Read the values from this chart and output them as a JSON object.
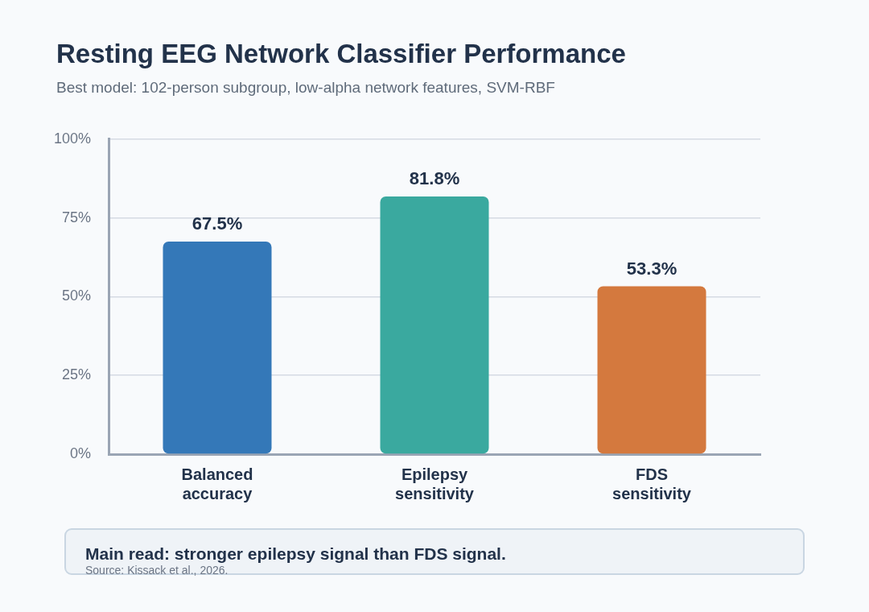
{
  "chart_data": {
    "type": "bar",
    "title": "Resting EEG Network Classifier Performance",
    "subtitle": "Best model: 102-person subgroup, low-alpha network features, SVM-RBF",
    "categories": [
      "Balanced accuracy",
      "Epilepsy sensitivity",
      "FDS sensitivity"
    ],
    "values": [
      67.5,
      81.8,
      53.3
    ],
    "colors": [
      "#3478b8",
      "#3aa99f",
      "#d4793e"
    ],
    "value_labels": [
      "67.5%",
      "81.8%",
      "53.3%"
    ],
    "ylim": [
      0,
      100
    ],
    "yticks": [
      {
        "value": 0,
        "label": "0%"
      },
      {
        "value": 25,
        "label": "25%"
      },
      {
        "value": 50,
        "label": "50%"
      },
      {
        "value": 75,
        "label": "75%"
      },
      {
        "value": 100,
        "label": "100%"
      }
    ],
    "grid": "y",
    "legend": false,
    "annotations": [
      "Main read: stronger epilepsy signal than FDS signal.",
      "Source: Kissack et al., 2026."
    ]
  }
}
